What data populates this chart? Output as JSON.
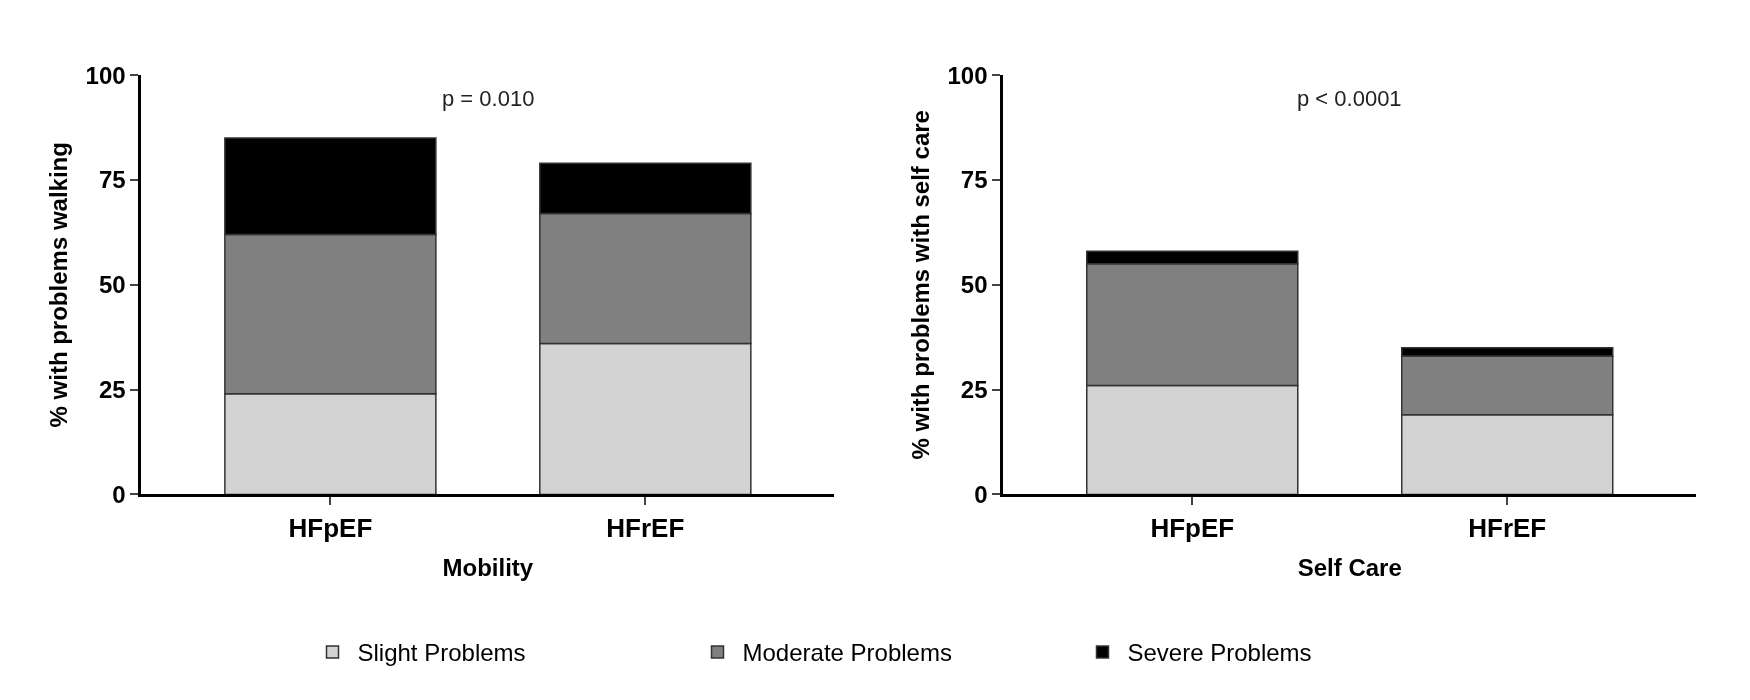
{
  "chart_data": [
    {
      "type": "bar",
      "stacked": true,
      "categories": [
        "HFpEF",
        "HFrEF"
      ],
      "xlabel": "Mobility",
      "ylabel": "% with problems walking",
      "ylim": [
        0,
        100
      ],
      "yticks": [
        0,
        25,
        50,
        75,
        100
      ],
      "legend": "bottom",
      "annotations": [
        "p = 0.010"
      ],
      "series": [
        {
          "name": "Slight Problems",
          "color": "#d3d3d3",
          "values": [
            24,
            36
          ]
        },
        {
          "name": "Moderate Problems",
          "color": "#808080",
          "values": [
            38,
            31
          ]
        },
        {
          "name": "Severe Problems",
          "color": "#000000",
          "values": [
            23,
            12
          ]
        }
      ]
    },
    {
      "type": "bar",
      "stacked": true,
      "categories": [
        "HFpEF",
        "HFrEF"
      ],
      "xlabel": "Self Care",
      "ylabel": "% with problems with self care",
      "ylim": [
        0,
        100
      ],
      "yticks": [
        0,
        25,
        50,
        75,
        100
      ],
      "legend": "bottom",
      "annotations": [
        "p < 0.0001"
      ],
      "series": [
        {
          "name": "Slight Problems",
          "color": "#d3d3d3",
          "values": [
            26,
            19
          ]
        },
        {
          "name": "Moderate Problems",
          "color": "#808080",
          "values": [
            29,
            14
          ]
        },
        {
          "name": "Severe Problems",
          "color": "#000000",
          "values": [
            3,
            2
          ]
        }
      ]
    }
  ]
}
